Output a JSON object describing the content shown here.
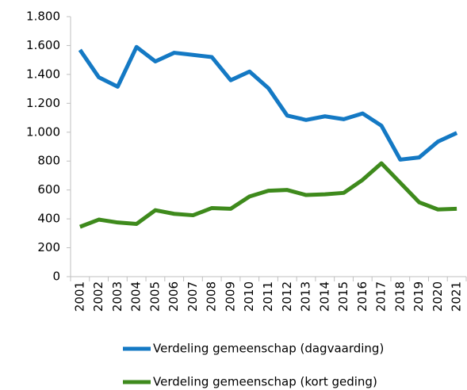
{
  "chart_data": {
    "type": "line",
    "categories": [
      "2001",
      "2002",
      "2003",
      "2004",
      "2005",
      "2006",
      "2007",
      "2008",
      "2009",
      "2010",
      "2011",
      "2012",
      "2013",
      "2014",
      "2015",
      "2016",
      "2017",
      "2018",
      "2019",
      "2020",
      "2021"
    ],
    "series": [
      {
        "name": "Verdeling gemeenschap (dagvaarding)",
        "color": "#1479c4",
        "values": [
          1570,
          1380,
          1315,
          1590,
          1490,
          1550,
          1535,
          1520,
          1360,
          1420,
          1305,
          1115,
          1085,
          1110,
          1090,
          1130,
          1045,
          810,
          825,
          935,
          995
        ]
      },
      {
        "name": "Verdeling gemeenschap (kort geding)",
        "color": "#3e8a1c",
        "values": [
          345,
          395,
          375,
          365,
          460,
          435,
          425,
          475,
          470,
          555,
          595,
          600,
          565,
          570,
          580,
          670,
          785,
          650,
          515,
          465,
          470
        ]
      }
    ],
    "ylim": [
      0,
      1800
    ],
    "yticks": [
      0,
      200,
      400,
      600,
      800,
      {
        "value": 1000,
        "label": "1.000"
      },
      {
        "value": 1200,
        "label": "1.200"
      },
      {
        "value": 1400,
        "label": "1.400"
      },
      {
        "value": 1600,
        "label": "1.600"
      },
      {
        "value": 1800,
        "label": "1.800"
      }
    ],
    "grid": false,
    "legend": "bottom"
  }
}
